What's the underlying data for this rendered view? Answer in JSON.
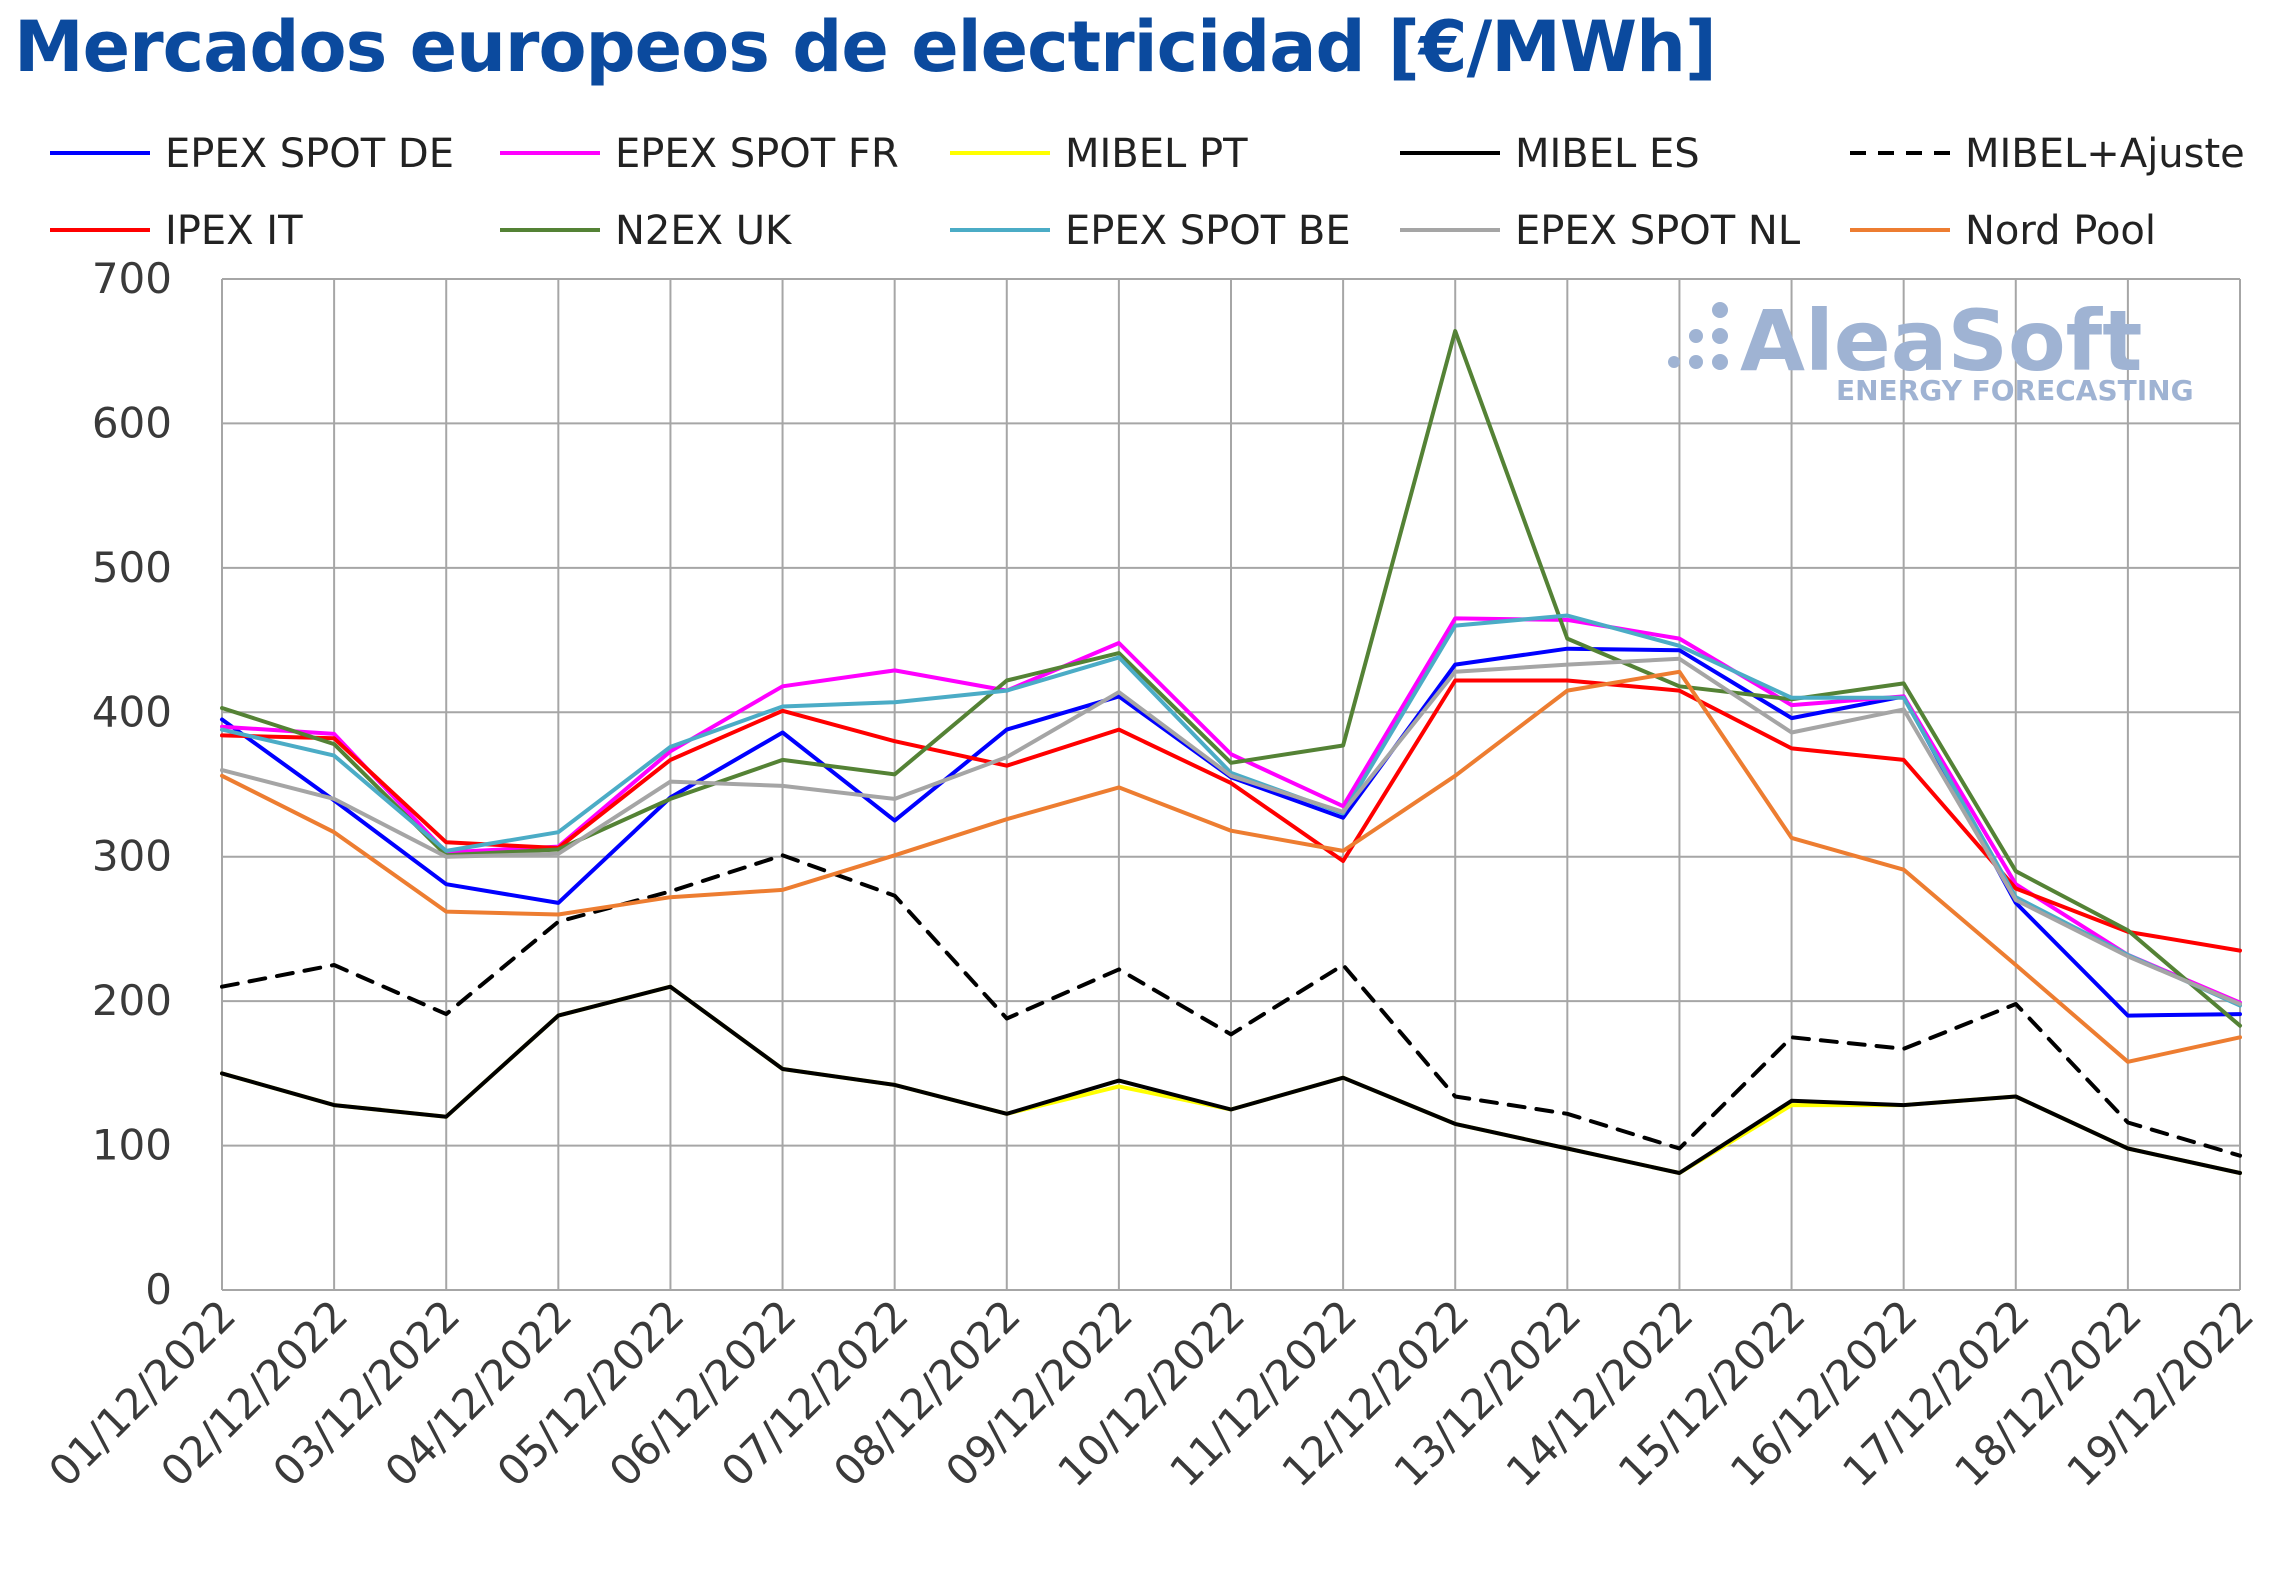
{
  "chart_data": {
    "type": "line",
    "title": "Mercados europeos de electricidad [€/MWh]",
    "categories": [
      "01/12/2022",
      "02/12/2022",
      "03/12/2022",
      "04/12/2022",
      "05/12/2022",
      "06/12/2022",
      "07/12/2022",
      "08/12/2022",
      "09/12/2022",
      "10/12/2022",
      "11/12/2022",
      "12/12/2022",
      "13/12/2022",
      "14/12/2022",
      "15/12/2022",
      "16/12/2022",
      "17/12/2022",
      "18/12/2022",
      "19/12/2022"
    ],
    "ylim": [
      0,
      700
    ],
    "yticks": [
      0,
      100,
      200,
      300,
      400,
      500,
      600,
      700
    ],
    "grid": true,
    "legend_position": "top",
    "series": [
      {
        "name": "EPEX SPOT DE",
        "color": "#0000ff",
        "dash": false,
        "values": [
          395,
          339,
          281,
          268,
          341,
          386,
          325,
          388,
          411,
          355,
          327,
          433,
          444,
          443,
          396,
          411,
          268,
          190,
          191
        ]
      },
      {
        "name": "EPEX SPOT FR",
        "color": "#ff00ff",
        "dash": false,
        "values": [
          390,
          385,
          303,
          307,
          373,
          418,
          429,
          415,
          448,
          371,
          335,
          465,
          464,
          451,
          405,
          411,
          281,
          232,
          199
        ]
      },
      {
        "name": "MIBEL PT",
        "color": "#ffff00",
        "dash": false,
        "values": [
          150,
          128,
          120,
          190,
          210,
          153,
          142,
          122,
          141,
          125,
          147,
          115,
          98,
          81,
          128,
          128,
          134,
          98,
          81
        ]
      },
      {
        "name": "MIBEL ES",
        "color": "#000000",
        "dash": false,
        "values": [
          150,
          128,
          120,
          190,
          210,
          153,
          142,
          122,
          145,
          125,
          147,
          115,
          98,
          81,
          131,
          128,
          134,
          98,
          81
        ]
      },
      {
        "name": "MIBEL+Ajuste",
        "color": "#000000",
        "dash": true,
        "values": [
          210,
          225,
          191,
          255,
          276,
          301,
          273,
          188,
          222,
          177,
          225,
          134,
          122,
          98,
          175,
          167,
          198,
          116,
          93
        ]
      },
      {
        "name": "IPEX IT",
        "color": "#ff0000",
        "dash": false,
        "values": [
          384,
          382,
          310,
          306,
          367,
          401,
          380,
          363,
          388,
          351,
          297,
          422,
          422,
          415,
          375,
          367,
          278,
          248,
          235
        ]
      },
      {
        "name": "N2EX UK",
        "color": "#548235",
        "dash": false,
        "values": [
          403,
          378,
          301,
          305,
          340,
          367,
          357,
          422,
          441,
          365,
          377,
          664,
          451,
          418,
          409,
          420,
          290,
          249,
          183
        ]
      },
      {
        "name": "EPEX SPOT BE",
        "color": "#4bacc6",
        "dash": false,
        "values": [
          388,
          370,
          304,
          317,
          376,
          404,
          407,
          415,
          438,
          358,
          330,
          460,
          467,
          446,
          410,
          410,
          272,
          232,
          197
        ]
      },
      {
        "name": "EPEX SPOT NL",
        "color": "#a5a5a5",
        "dash": false,
        "values": [
          360,
          340,
          300,
          302,
          352,
          349,
          340,
          369,
          414,
          356,
          331,
          428,
          433,
          437,
          386,
          402,
          270,
          231,
          198
        ]
      },
      {
        "name": "Nord Pool",
        "color": "#ed7d31",
        "dash": false,
        "values": [
          356,
          317,
          262,
          260,
          272,
          277,
          301,
          326,
          348,
          318,
          304,
          356,
          415,
          428,
          313,
          291,
          225,
          158,
          175
        ]
      }
    ]
  },
  "watermark": {
    "text": "AleaSoft",
    "subtext": "ENERGY FORECASTING",
    "color": "#9fb3d3"
  }
}
